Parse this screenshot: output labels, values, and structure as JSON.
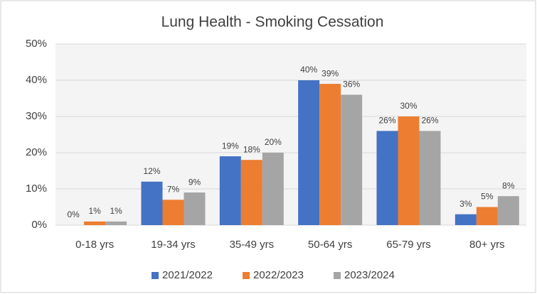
{
  "chart_data": {
    "type": "bar",
    "title": "Lung Health - Smoking Cessation",
    "categories": [
      "0-18 yrs",
      "19-34 yrs",
      "35-49 yrs",
      "50-64 yrs",
      "65-79 yrs",
      "80+ yrs"
    ],
    "series": [
      {
        "name": "2021/2022",
        "color": "#4472c4",
        "values": [
          0,
          12,
          19,
          40,
          26,
          3
        ],
        "value_labels": [
          "0%",
          "12%",
          "19%",
          "40%",
          "26%",
          "3%"
        ]
      },
      {
        "name": "2022/2023",
        "color": "#ed7d31",
        "values": [
          1,
          7,
          18,
          39,
          30,
          5
        ],
        "value_labels": [
          "1%",
          "7%",
          "18%",
          "39%",
          "30%",
          "5%"
        ]
      },
      {
        "name": "2023/2024",
        "color": "#a5a5a5",
        "values": [
          1,
          9,
          20,
          36,
          26,
          8
        ],
        "value_labels": [
          "1%",
          "9%",
          "20%",
          "36%",
          "26%",
          "8%"
        ]
      }
    ],
    "ylim": [
      0,
      50
    ],
    "yticks": [
      {
        "value": 0,
        "label": "0%"
      },
      {
        "value": 10,
        "label": "10%"
      },
      {
        "value": 20,
        "label": "20%"
      },
      {
        "value": 30,
        "label": "30%"
      },
      {
        "value": 40,
        "label": "40%"
      },
      {
        "value": 50,
        "label": "50%"
      }
    ],
    "grid": true,
    "legend": "bottom"
  }
}
